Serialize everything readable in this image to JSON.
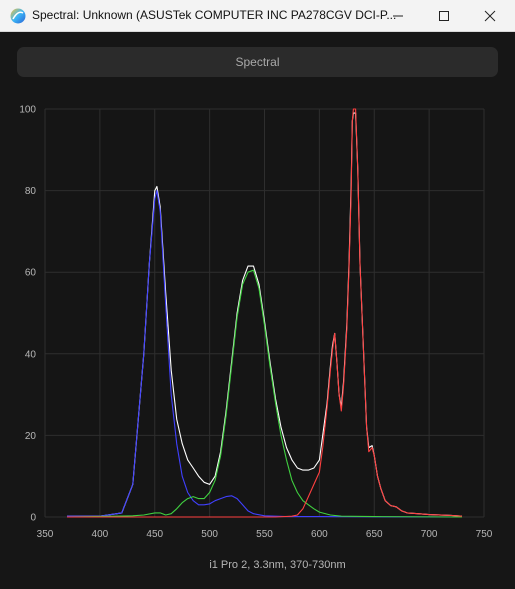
{
  "window": {
    "title": "Spectral: Unknown (ASUSTek COMPUTER INC PA278CGV DCI-P...",
    "icon": "app-logo-icon",
    "controls": [
      "minimize-icon",
      "maximize-icon",
      "close-icon"
    ]
  },
  "header": {
    "label": "Spectral"
  },
  "chart_data": {
    "type": "line",
    "xlabel": "i1 Pro 2, 3.3nm, 370-730nm",
    "ylabel": "",
    "xlim": [
      350,
      750
    ],
    "ylim": [
      0,
      100
    ],
    "x_ticks": [
      350,
      400,
      450,
      500,
      550,
      600,
      650,
      700,
      750
    ],
    "y_ticks": [
      0,
      20,
      40,
      60,
      80,
      100
    ],
    "grid": true,
    "series": [
      {
        "color": "#ffffff",
        "points": [
          [
            370,
            0.2
          ],
          [
            400,
            0.2
          ],
          [
            420,
            1
          ],
          [
            430,
            8
          ],
          [
            440,
            40
          ],
          [
            445,
            62
          ],
          [
            450,
            80
          ],
          [
            452,
            81
          ],
          [
            455,
            76
          ],
          [
            460,
            55
          ],
          [
            465,
            36
          ],
          [
            470,
            24
          ],
          [
            475,
            18
          ],
          [
            480,
            14
          ],
          [
            485,
            12
          ],
          [
            490,
            10
          ],
          [
            495,
            8.5
          ],
          [
            500,
            8
          ],
          [
            505,
            10
          ],
          [
            510,
            16
          ],
          [
            515,
            26
          ],
          [
            520,
            38
          ],
          [
            525,
            50
          ],
          [
            530,
            58
          ],
          [
            535,
            61.5
          ],
          [
            540,
            61.5
          ],
          [
            545,
            57
          ],
          [
            550,
            48
          ],
          [
            555,
            38
          ],
          [
            560,
            29
          ],
          [
            565,
            22
          ],
          [
            570,
            17
          ],
          [
            575,
            14
          ],
          [
            580,
            12
          ],
          [
            585,
            11.5
          ],
          [
            590,
            11.5
          ],
          [
            595,
            12
          ],
          [
            600,
            14
          ],
          [
            603,
            20
          ],
          [
            607,
            28
          ],
          [
            610,
            37
          ],
          [
            612,
            42
          ],
          [
            614,
            45
          ],
          [
            616,
            38
          ],
          [
            618,
            30
          ],
          [
            620,
            27
          ],
          [
            622,
            33
          ],
          [
            625,
            47
          ],
          [
            627,
            62
          ],
          [
            629,
            82
          ],
          [
            630,
            97
          ],
          [
            631,
            99
          ],
          [
            633,
            99
          ],
          [
            635,
            85
          ],
          [
            637,
            62
          ],
          [
            640,
            42
          ],
          [
            643,
            22
          ],
          [
            645,
            17
          ],
          [
            648,
            17.5
          ],
          [
            650,
            15
          ],
          [
            653,
            10
          ],
          [
            656,
            7
          ],
          [
            660,
            4
          ],
          [
            665,
            2.8
          ],
          [
            670,
            2.5
          ],
          [
            675,
            1.5
          ],
          [
            680,
            1
          ],
          [
            690,
            0.8
          ],
          [
            700,
            0.6
          ],
          [
            720,
            0.4
          ],
          [
            730,
            0.2
          ]
        ]
      },
      {
        "color": "#4040ff",
        "points": [
          [
            370,
            0.2
          ],
          [
            400,
            0.2
          ],
          [
            420,
            1
          ],
          [
            430,
            8
          ],
          [
            440,
            40
          ],
          [
            445,
            62
          ],
          [
            450,
            78
          ],
          [
            452,
            80
          ],
          [
            455,
            75
          ],
          [
            460,
            52
          ],
          [
            465,
            30
          ],
          [
            470,
            18
          ],
          [
            475,
            10
          ],
          [
            480,
            6
          ],
          [
            485,
            4
          ],
          [
            490,
            3
          ],
          [
            495,
            3
          ],
          [
            500,
            3.2
          ],
          [
            505,
            4
          ],
          [
            510,
            4.5
          ],
          [
            515,
            5
          ],
          [
            520,
            5.2
          ],
          [
            525,
            4.5
          ],
          [
            530,
            3
          ],
          [
            535,
            1.5
          ],
          [
            540,
            0.8
          ],
          [
            550,
            0.3
          ],
          [
            570,
            0.1
          ],
          [
            600,
            0.1
          ],
          [
            730,
            0
          ]
        ]
      },
      {
        "color": "#40d040",
        "points": [
          [
            370,
            0
          ],
          [
            430,
            0.3
          ],
          [
            440,
            0.5
          ],
          [
            450,
            1
          ],
          [
            455,
            1
          ],
          [
            460,
            0.5
          ],
          [
            465,
            0.8
          ],
          [
            470,
            2
          ],
          [
            475,
            3.5
          ],
          [
            480,
            4.5
          ],
          [
            485,
            5
          ],
          [
            490,
            4.5
          ],
          [
            495,
            4.5
          ],
          [
            500,
            6
          ],
          [
            505,
            9
          ],
          [
            510,
            15
          ],
          [
            515,
            25
          ],
          [
            520,
            37
          ],
          [
            525,
            49
          ],
          [
            530,
            57
          ],
          [
            535,
            60
          ],
          [
            540,
            60.5
          ],
          [
            545,
            56
          ],
          [
            550,
            47
          ],
          [
            555,
            37
          ],
          [
            560,
            28
          ],
          [
            565,
            20
          ],
          [
            570,
            14
          ],
          [
            575,
            9
          ],
          [
            580,
            6
          ],
          [
            585,
            4
          ],
          [
            590,
            3
          ],
          [
            595,
            2
          ],
          [
            600,
            1.2
          ],
          [
            610,
            0.5
          ],
          [
            620,
            0.2
          ],
          [
            650,
            0.1
          ],
          [
            730,
            0
          ]
        ]
      },
      {
        "color": "#ff4040",
        "points": [
          [
            370,
            0
          ],
          [
            560,
            0
          ],
          [
            575,
            0.2
          ],
          [
            580,
            0.5
          ],
          [
            585,
            2
          ],
          [
            590,
            5
          ],
          [
            595,
            8
          ],
          [
            600,
            11
          ],
          [
            603,
            17
          ],
          [
            607,
            27
          ],
          [
            610,
            36
          ],
          [
            612,
            41
          ],
          [
            614,
            45
          ],
          [
            616,
            38
          ],
          [
            618,
            30
          ],
          [
            620,
            26
          ],
          [
            622,
            32
          ],
          [
            625,
            46
          ],
          [
            627,
            61
          ],
          [
            629,
            80
          ],
          [
            630,
            97
          ],
          [
            631,
            100
          ],
          [
            633,
            100
          ],
          [
            635,
            85
          ],
          [
            637,
            62
          ],
          [
            640,
            42
          ],
          [
            643,
            22
          ],
          [
            645,
            16
          ],
          [
            648,
            17
          ],
          [
            650,
            15
          ],
          [
            653,
            10
          ],
          [
            656,
            7
          ],
          [
            660,
            4
          ],
          [
            665,
            2.8
          ],
          [
            670,
            2.5
          ],
          [
            675,
            1.5
          ],
          [
            680,
            1
          ],
          [
            690,
            0.8
          ],
          [
            700,
            0.6
          ],
          [
            720,
            0.4
          ],
          [
            730,
            0.2
          ]
        ]
      }
    ]
  }
}
